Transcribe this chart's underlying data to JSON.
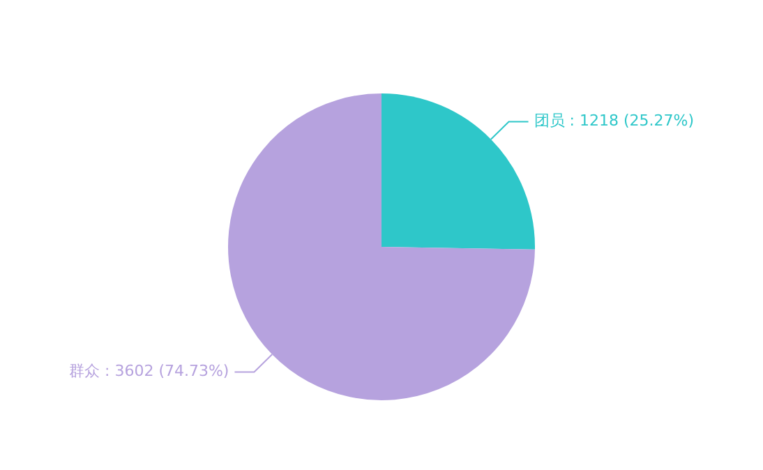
{
  "chart_data": {
    "type": "pie",
    "categories": [
      "团员",
      "群众"
    ],
    "values": [
      1218,
      3602
    ],
    "colors": [
      "#2ec7c9",
      "#b6a2de"
    ],
    "value_labels": [
      "1218 (25.27%)",
      "3602 (74.73%)"
    ],
    "legend": false
  }
}
